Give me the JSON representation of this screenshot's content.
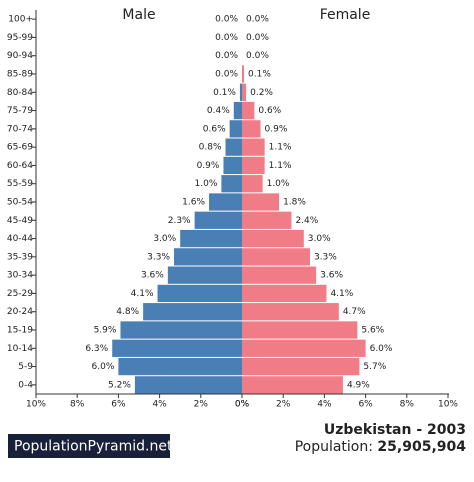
{
  "chart_data": {
    "type": "pyramid",
    "categories": [
      "100+",
      "95-99",
      "90-94",
      "85-89",
      "80-84",
      "75-79",
      "70-74",
      "65-69",
      "60-64",
      "55-59",
      "50-54",
      "45-49",
      "40-44",
      "35-39",
      "30-34",
      "25-29",
      "20-24",
      "15-19",
      "10-14",
      "5-9",
      "0-4"
    ],
    "series": [
      {
        "name": "Male",
        "color": "#4a7fb5",
        "values": [
          0.0,
          0.0,
          0.0,
          0.0,
          0.1,
          0.4,
          0.6,
          0.8,
          0.9,
          1.0,
          1.6,
          2.3,
          3.0,
          3.3,
          3.6,
          4.1,
          4.8,
          5.9,
          6.3,
          6.0,
          5.2
        ],
        "value_labels": [
          "0.0%",
          "0.0%",
          "0.0%",
          "0.0%",
          "0.1%",
          "0.4%",
          "0.6%",
          "0.8%",
          "0.9%",
          "1.0%",
          "1.6%",
          "2.3%",
          "3.0%",
          "3.3%",
          "3.6%",
          "4.1%",
          "4.8%",
          "5.9%",
          "6.3%",
          "6.0%",
          "5.2%"
        ]
      },
      {
        "name": "Female",
        "color": "#f07c88",
        "values": [
          0.0,
          0.0,
          0.0,
          0.1,
          0.2,
          0.6,
          0.9,
          1.1,
          1.1,
          1.0,
          1.8,
          2.4,
          3.0,
          3.3,
          3.6,
          4.1,
          4.7,
          5.6,
          6.0,
          5.7,
          4.9
        ],
        "value_labels": [
          "0.0%",
          "0.0%",
          "0.0%",
          "0.1%",
          "0.2%",
          "0.6%",
          "0.9%",
          "1.1%",
          "1.1%",
          "1.0%",
          "1.8%",
          "2.4%",
          "3.0%",
          "3.3%",
          "3.6%",
          "4.1%",
          "4.7%",
          "5.6%",
          "6.0%",
          "5.7%",
          "4.9%"
        ]
      }
    ],
    "xlim": [
      0,
      10
    ],
    "xticks": [
      {
        "value": 0,
        "label": "0%"
      },
      {
        "value": 2,
        "label": "2%"
      },
      {
        "value": 4,
        "label": "4%"
      },
      {
        "value": 6,
        "label": "6%"
      },
      {
        "value": 8,
        "label": "8%"
      },
      {
        "value": 10,
        "label": "10%"
      }
    ],
    "brand": "PopulationPyramid.net",
    "title": "Uzbekistan - 2003",
    "population_label": "Population:",
    "population": "25,905,904"
  }
}
